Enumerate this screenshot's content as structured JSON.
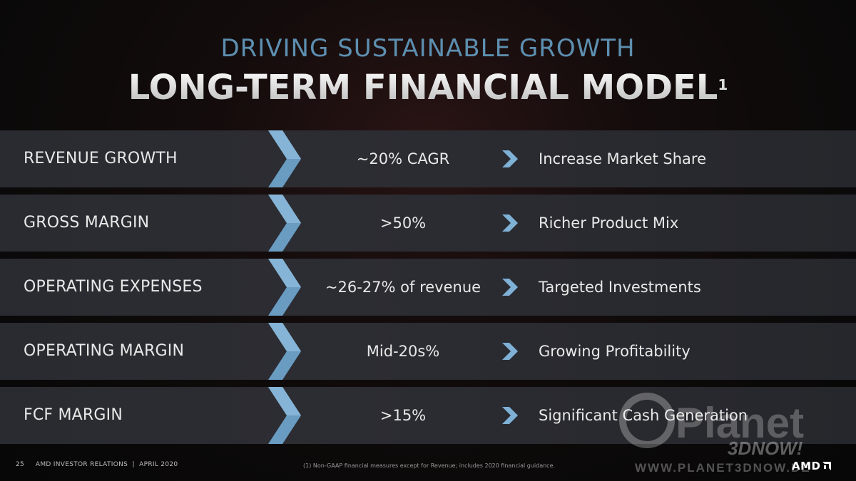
{
  "header": {
    "pre_title": "DRIVING SUSTAINABLE GROWTH",
    "title": "LONG-TERM FINANCIAL MODEL",
    "footnote_marker": "1"
  },
  "rows": [
    {
      "metric": "REVENUE GROWTH",
      "value": "~20% CAGR",
      "description": "Increase Market Share"
    },
    {
      "metric": "GROSS MARGIN",
      "value": ">50%",
      "description": "Richer Product Mix"
    },
    {
      "metric": "OPERATING EXPENSES",
      "value": "~26-27% of revenue",
      "description": "Targeted Investments"
    },
    {
      "metric": "OPERATING MARGIN",
      "value": "Mid-20s%",
      "description": "Growing Profitability"
    },
    {
      "metric": "FCF MARGIN",
      "value": ">15%",
      "description": "Significant Cash Generation"
    }
  ],
  "footer": {
    "page_number": "25",
    "org": "AMD INVESTOR RELATIONS",
    "separator": "|",
    "date": "APRIL 2020",
    "note": "(1) Non-GAAP financial measures except for Revenue; includes 2020 financial guidance.",
    "logo_text": "AMD"
  },
  "watermark": {
    "brand": "Planet",
    "subbrand": "3DNOW!",
    "url": "WWW.PLANET3DNOW.DE"
  },
  "colors": {
    "accent_blue": "#5d8fb0",
    "chevron_blue": "#6a9cc2",
    "row_bg": "#2b2c31"
  }
}
